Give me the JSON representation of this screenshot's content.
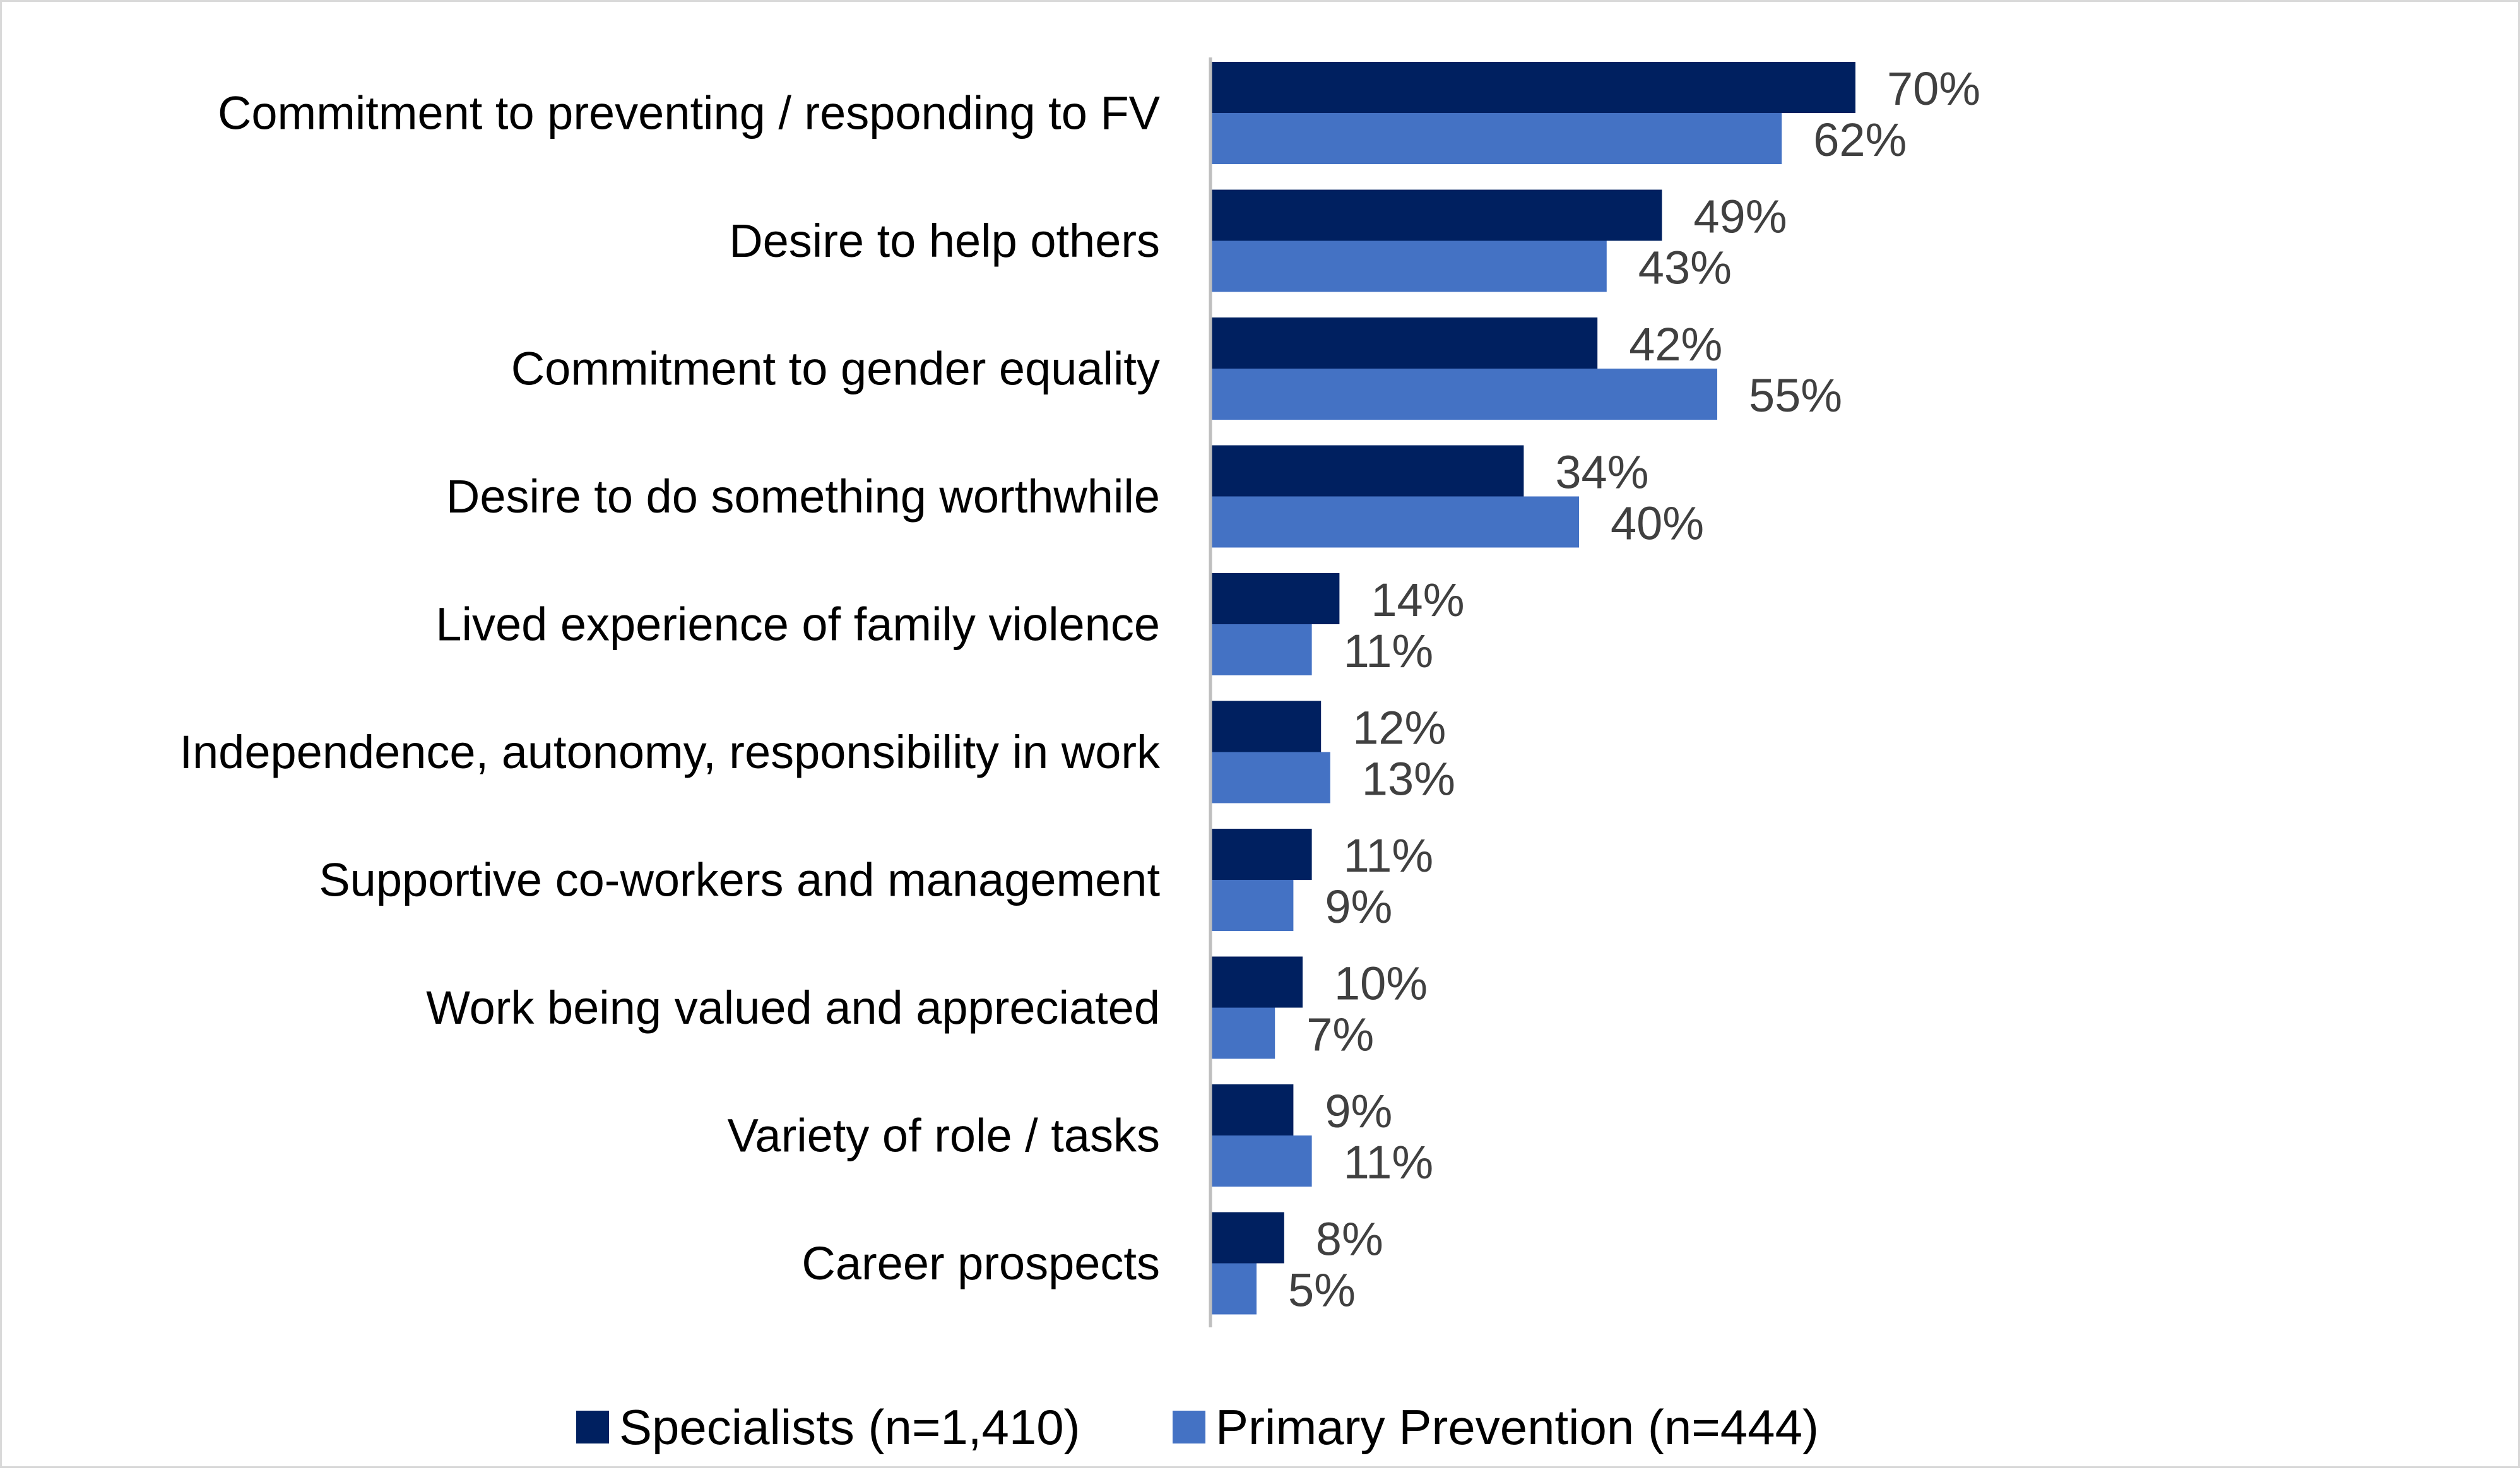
{
  "chart_data": {
    "type": "bar",
    "orientation": "horizontal",
    "categories": [
      "Commitment to preventing / responding to FV",
      "Desire to help others",
      "Commitment to gender equality",
      "Desire to do something worthwhile",
      "Lived experience of family violence",
      "Independence, autonomy, responsibility in work",
      "Supportive co-workers and management",
      "Work being valued and appreciated",
      "Variety of role / tasks",
      "Career prospects"
    ],
    "series": [
      {
        "name": "Specialists (n=1,410)",
        "color": "#002060",
        "values": [
          70,
          49,
          42,
          34,
          14,
          12,
          11,
          10,
          9,
          8
        ],
        "labels": [
          "70%",
          "49%",
          "42%",
          "34%",
          "14%",
          "12%",
          "11%",
          "10%",
          "9%",
          "8%"
        ]
      },
      {
        "name": "Primary Prevention (n=444)",
        "color": "#4472c4",
        "values": [
          62,
          43,
          55,
          40,
          11,
          13,
          9,
          7,
          11,
          5
        ],
        "labels": [
          "62%",
          "43%",
          "55%",
          "40%",
          "11%",
          "13%",
          "9%",
          "7%",
          "11%",
          "5%"
        ]
      }
    ],
    "title": "",
    "xlabel": "",
    "ylabel": "",
    "xlim": [
      0,
      100
    ],
    "grid": false,
    "legend_position": "bottom",
    "axis_color": "#bfbfbf",
    "label_color": "#404040"
  }
}
